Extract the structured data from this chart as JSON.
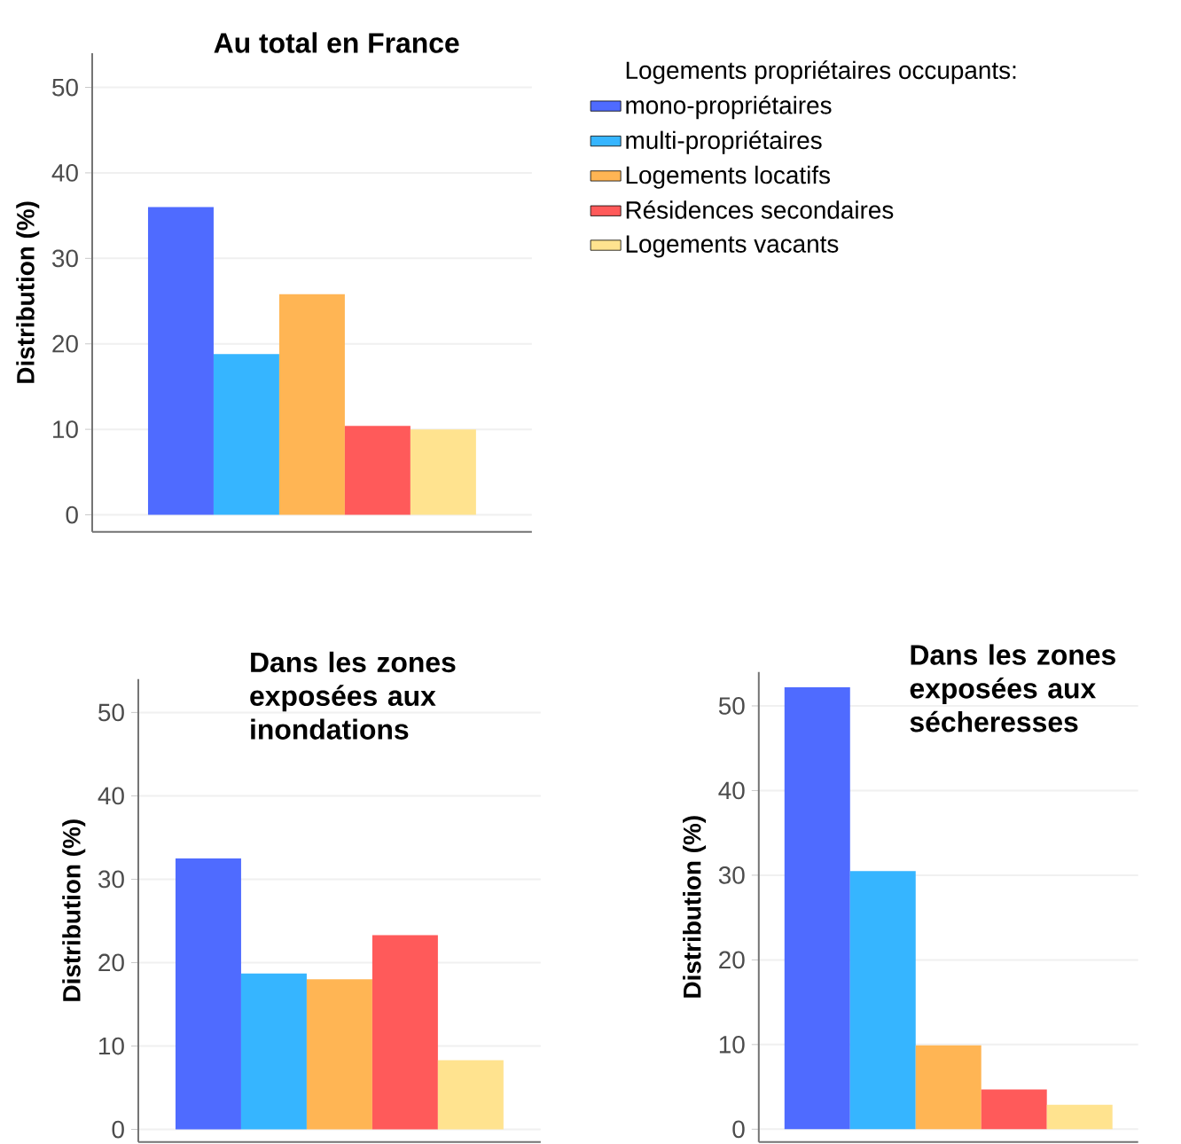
{
  "chart_data": [
    {
      "type": "bar",
      "title": "Au total en France",
      "ylabel": "Distribution (%)",
      "categories": [
        null
      ],
      "ylim": [
        -2,
        54
      ],
      "yticks": [
        0,
        10,
        20,
        30,
        40,
        50
      ],
      "grid": "y",
      "legend": "right",
      "legend_title": "Logements propriétaires occupants:",
      "series": [
        {
          "name": "mono-propriétaires",
          "color": "#4f6bff",
          "values": [
            36
          ]
        },
        {
          "name": "multi-propriétaires",
          "color": "#36b5ff",
          "values": [
            18.8
          ]
        },
        {
          "name": "Logements locatifs",
          "color": "#ffb554",
          "values": [
            25.8
          ]
        },
        {
          "name": "Résidences secondaires",
          "color": "#ff5a5a",
          "values": [
            10.4
          ]
        },
        {
          "name": "Logements vacants",
          "color": "#ffe38f",
          "values": [
            10
          ]
        }
      ]
    },
    {
      "type": "bar",
      "title": "Dans les zones exposées aux inondations",
      "ylabel": "Distribution (%)",
      "categories": [
        null
      ],
      "ylim": [
        -1.5,
        54
      ],
      "yticks": [
        0,
        10,
        20,
        30,
        40,
        50
      ],
      "grid": "y",
      "series": [
        {
          "color": "#4f6bff",
          "values": [
            32.5
          ]
        },
        {
          "color": "#36b5ff",
          "values": [
            18.7
          ]
        },
        {
          "color": "#ffb554",
          "values": [
            18
          ]
        },
        {
          "color": "#ff5a5a",
          "values": [
            23.3
          ]
        },
        {
          "color": "#ffe38f",
          "values": [
            8.3
          ]
        }
      ]
    },
    {
      "type": "bar",
      "title": "Dans les zones exposées aux sécheresses",
      "ylabel": "Distribution (%)",
      "categories": [
        null
      ],
      "ylim": [
        -1.5,
        54
      ],
      "yticks": [
        0,
        10,
        20,
        30,
        40,
        50
      ],
      "grid": "y",
      "series": [
        {
          "color": "#4f6bff",
          "values": [
            52.2
          ]
        },
        {
          "color": "#36b5ff",
          "values": [
            30.5
          ]
        },
        {
          "color": "#ffb554",
          "values": [
            9.9
          ]
        },
        {
          "color": "#ff5a5a",
          "values": [
            4.7
          ]
        },
        {
          "color": "#ffe38f",
          "values": [
            2.9
          ]
        }
      ]
    }
  ]
}
